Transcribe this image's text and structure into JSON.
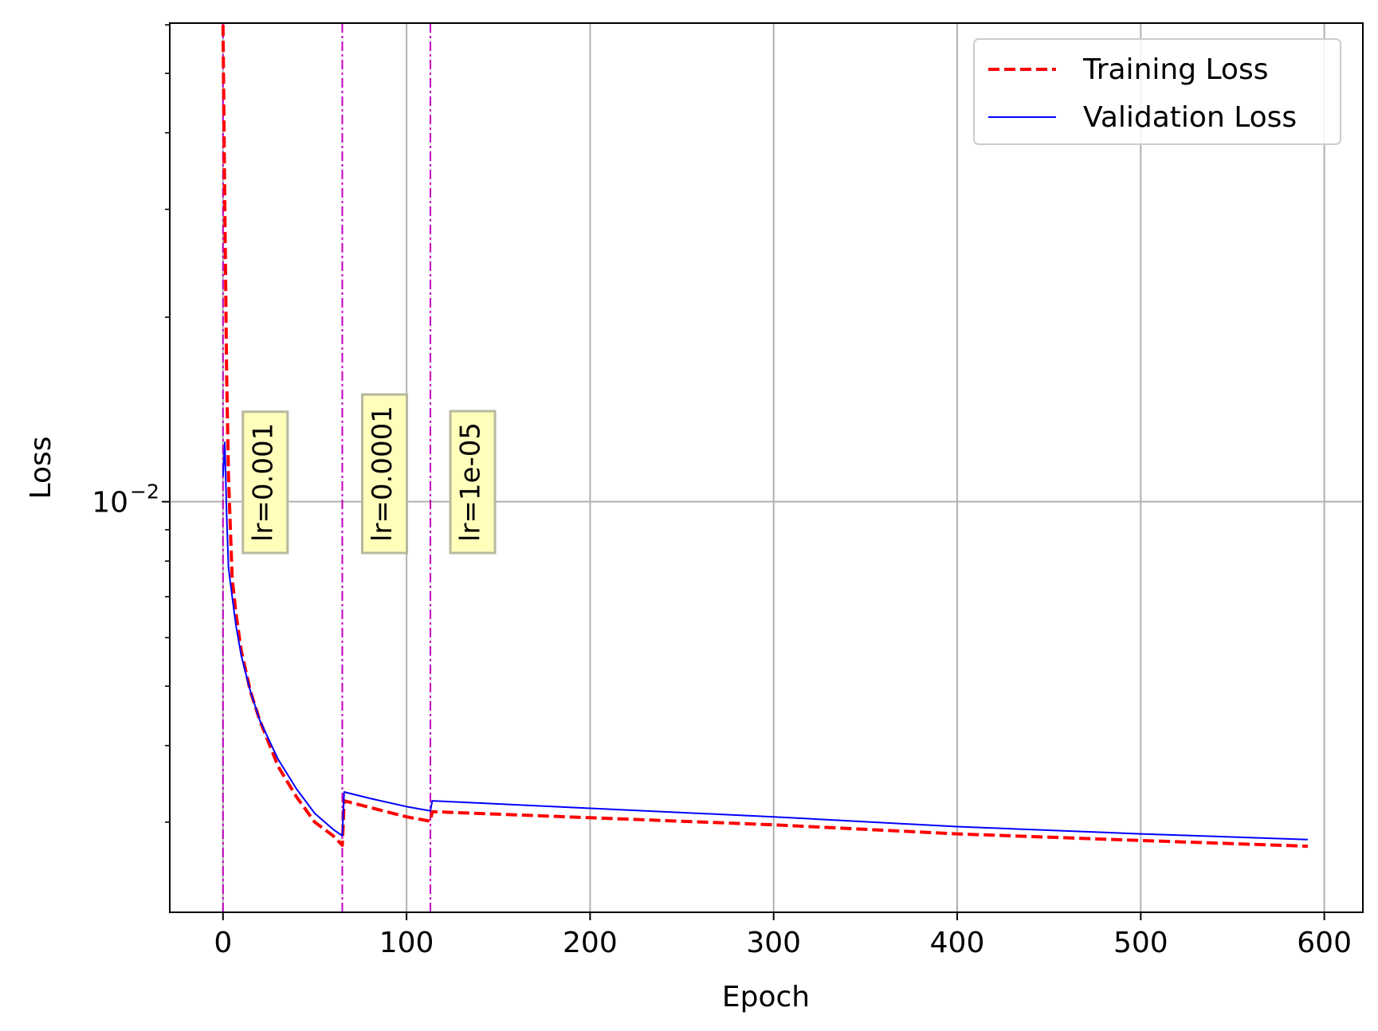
{
  "chart_data": {
    "type": "line",
    "xlabel": "Epoch",
    "ylabel": "Loss",
    "xlim": [
      -29,
      621
    ],
    "ylim_log10": [
      -2.67,
      -1.219
    ],
    "yscale": "log",
    "grid": true,
    "x_ticks": [
      0,
      100,
      200,
      300,
      400,
      500,
      600
    ],
    "x_tick_labels": [
      "0",
      "100",
      "200",
      "300",
      "400",
      "500",
      "600"
    ],
    "y_major_ticks": [
      {
        "value": 0.01,
        "base": "10",
        "exp": "−2"
      }
    ],
    "y_minor_ticks": [
      0.003,
      0.004,
      0.005,
      0.006,
      0.007,
      0.008,
      0.009,
      0.02,
      0.03,
      0.04,
      0.05,
      0.06
    ],
    "legend": {
      "position": "top-right",
      "entries": [
        {
          "label": "Training Loss",
          "color": "#ff0000",
          "style": "dashed"
        },
        {
          "label": "Validation Loss",
          "color": "#0000ff",
          "style": "solid"
        }
      ]
    },
    "series": [
      {
        "name": "Training Loss",
        "color": "#ff0000",
        "style": "dashed",
        "points": [
          [
            0,
            0.06
          ],
          [
            1,
            0.03
          ],
          [
            2,
            0.016
          ],
          [
            3,
            0.011
          ],
          [
            5,
            0.0075
          ],
          [
            7,
            0.0066
          ],
          [
            10,
            0.0057
          ],
          [
            15,
            0.0049
          ],
          [
            20,
            0.0044
          ],
          [
            30,
            0.0037
          ],
          [
            40,
            0.0033
          ],
          [
            50,
            0.003
          ],
          [
            60,
            0.00285
          ],
          [
            65,
            0.00275
          ],
          [
            66,
            0.00325
          ],
          [
            80,
            0.00317
          ],
          [
            100,
            0.00306
          ],
          [
            113,
            0.00301
          ],
          [
            114,
            0.00312
          ],
          [
            200,
            0.00305
          ],
          [
            300,
            0.00297
          ],
          [
            400,
            0.00287
          ],
          [
            500,
            0.0028
          ],
          [
            591,
            0.00274
          ]
        ]
      },
      {
        "name": "Validation Loss",
        "color": "#0000ff",
        "style": "solid",
        "points": [
          [
            0,
            0.011
          ],
          [
            1,
            0.0125
          ],
          [
            2,
            0.0095
          ],
          [
            3,
            0.0078
          ],
          [
            5,
            0.007
          ],
          [
            7,
            0.0063
          ],
          [
            10,
            0.0056
          ],
          [
            15,
            0.0049
          ],
          [
            20,
            0.0044
          ],
          [
            30,
            0.0038
          ],
          [
            40,
            0.0034
          ],
          [
            50,
            0.0031
          ],
          [
            60,
            0.00292
          ],
          [
            65,
            0.00285
          ],
          [
            66,
            0.00336
          ],
          [
            80,
            0.00328
          ],
          [
            100,
            0.00318
          ],
          [
            113,
            0.00313
          ],
          [
            114,
            0.00325
          ],
          [
            200,
            0.00316
          ],
          [
            300,
            0.00306
          ],
          [
            400,
            0.00295
          ],
          [
            500,
            0.00287
          ],
          [
            591,
            0.00281
          ]
        ]
      }
    ],
    "lr_changes": [
      {
        "epoch": 0,
        "label": "lr=0.001"
      },
      {
        "epoch": 65,
        "label": "lr=0.0001"
      },
      {
        "epoch": 113,
        "label": "lr=1e-05"
      }
    ],
    "lr_line_color": "#bf00bf",
    "lr_box_color": "#ffffbb"
  }
}
